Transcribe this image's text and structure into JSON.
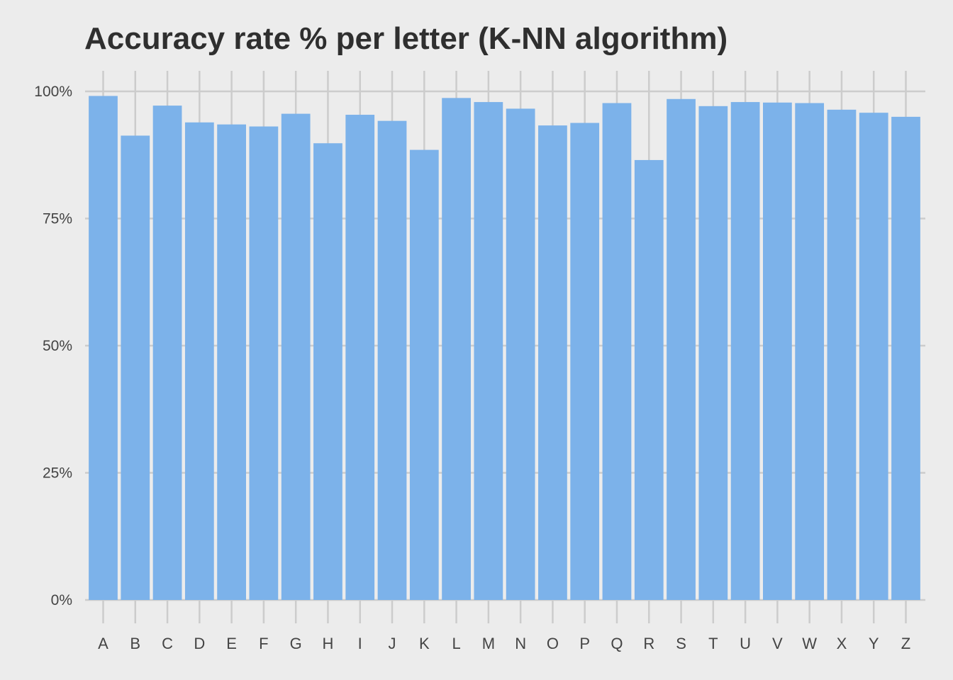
{
  "chart_data": {
    "type": "bar",
    "title": "Accuracy rate % per letter (K-NN algorithm)",
    "xlabel": "",
    "ylabel": "",
    "categories": [
      "A",
      "B",
      "C",
      "D",
      "E",
      "F",
      "G",
      "H",
      "I",
      "J",
      "K",
      "L",
      "M",
      "N",
      "O",
      "P",
      "Q",
      "R",
      "S",
      "T",
      "U",
      "V",
      "W",
      "X",
      "Y",
      "Z"
    ],
    "values": [
      99.1,
      91.3,
      97.2,
      93.9,
      93.5,
      93.1,
      95.6,
      89.8,
      95.4,
      94.2,
      88.5,
      98.7,
      97.9,
      96.6,
      93.3,
      93.8,
      97.7,
      86.5,
      98.5,
      97.1,
      97.9,
      97.8,
      97.7,
      96.4,
      95.8,
      95.0
    ],
    "ylim": [
      0,
      100
    ],
    "yticks": [
      0,
      25,
      50,
      75,
      100
    ],
    "ytick_labels": [
      "0%",
      "25%",
      "50%",
      "75%",
      "100%"
    ],
    "grid": true,
    "bar_color": "#7cb2ea",
    "background_color": "#ececec",
    "grid_color": "#cccccc"
  }
}
